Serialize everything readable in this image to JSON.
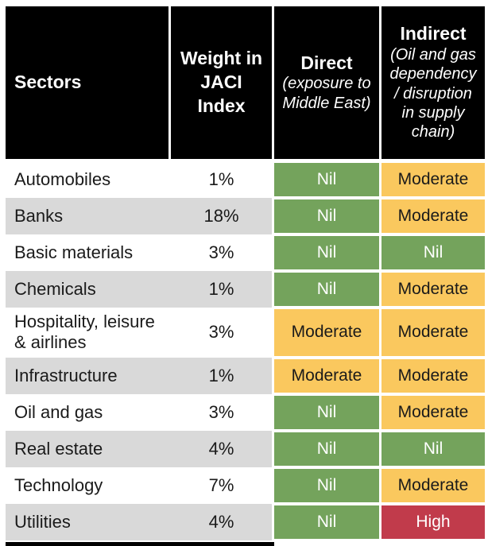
{
  "header": {
    "sectors": "Sectors",
    "weight": "Weight in\nJACI\nIndex",
    "direct_title": "Direct",
    "direct_sub": "(exposure to\nMiddle East)",
    "indirect_title": "Indirect",
    "indirect_sub": "(Oil and gas\ndependency\n/ disruption\nin supply\nchain)"
  },
  "rows": [
    {
      "sector": "Automobiles",
      "weight": "1%",
      "direct": "Nil",
      "indirect": "Moderate"
    },
    {
      "sector": "Banks",
      "weight": "18%",
      "direct": "Nil",
      "indirect": "Moderate"
    },
    {
      "sector": "Basic materials",
      "weight": "3%",
      "direct": "Nil",
      "indirect": "Nil"
    },
    {
      "sector": "Chemicals",
      "weight": "1%",
      "direct": "Nil",
      "indirect": "Moderate"
    },
    {
      "sector": "Hospitality, leisure & airlines",
      "weight": "3%",
      "direct": "Moderate",
      "indirect": "Moderate"
    },
    {
      "sector": "Infrastructure",
      "weight": "1%",
      "direct": "Moderate",
      "indirect": "Moderate"
    },
    {
      "sector": "Oil and gas",
      "weight": "3%",
      "direct": "Nil",
      "indirect": "Moderate"
    },
    {
      "sector": "Real estate",
      "weight": "4%",
      "direct": "Nil",
      "indirect": "Nil"
    },
    {
      "sector": "Technology",
      "weight": "7%",
      "direct": "Nil",
      "indirect": "Moderate"
    },
    {
      "sector": "Utilities",
      "weight": "4%",
      "direct": "Nil",
      "indirect": "High"
    }
  ],
  "rating_colors": {
    "Nil": {
      "bg": "#74A35C",
      "text": "#ffffff"
    },
    "Moderate": {
      "bg": "#FAC85E",
      "text": "#1a1a1a"
    },
    "High": {
      "bg": "#C13B4B",
      "text": "#ffffff"
    }
  },
  "colors": {
    "header_bg": "#000000",
    "header_text": "#ffffff",
    "row_alt_bg": "#d9d9d9",
    "body_text": "#1a1a1a"
  },
  "chart_data": {
    "type": "table",
    "columns": [
      "Sectors",
      "Weight in JACI Index",
      "Direct (exposure to Middle East)",
      "Indirect (Oil and gas dependency / disruption in supply chain)"
    ],
    "rows": [
      [
        "Automobiles",
        "1%",
        "Nil",
        "Moderate"
      ],
      [
        "Banks",
        "18%",
        "Nil",
        "Moderate"
      ],
      [
        "Basic materials",
        "3%",
        "Nil",
        "Nil"
      ],
      [
        "Chemicals",
        "1%",
        "Nil",
        "Moderate"
      ],
      [
        "Hospitality, leisure & airlines",
        "3%",
        "Moderate",
        "Moderate"
      ],
      [
        "Infrastructure",
        "1%",
        "Moderate",
        "Moderate"
      ],
      [
        "Oil and gas",
        "3%",
        "Nil",
        "Moderate"
      ],
      [
        "Real estate",
        "4%",
        "Nil",
        "Nil"
      ],
      [
        "Technology",
        "7%",
        "Nil",
        "Moderate"
      ],
      [
        "Utilities",
        "4%",
        "Nil",
        "High"
      ]
    ],
    "legend": [
      "Nil = green",
      "Moderate = amber",
      "High = red"
    ],
    "layout_hints": {
      "zebra_striping": true,
      "header_style": "black-blocks"
    }
  }
}
